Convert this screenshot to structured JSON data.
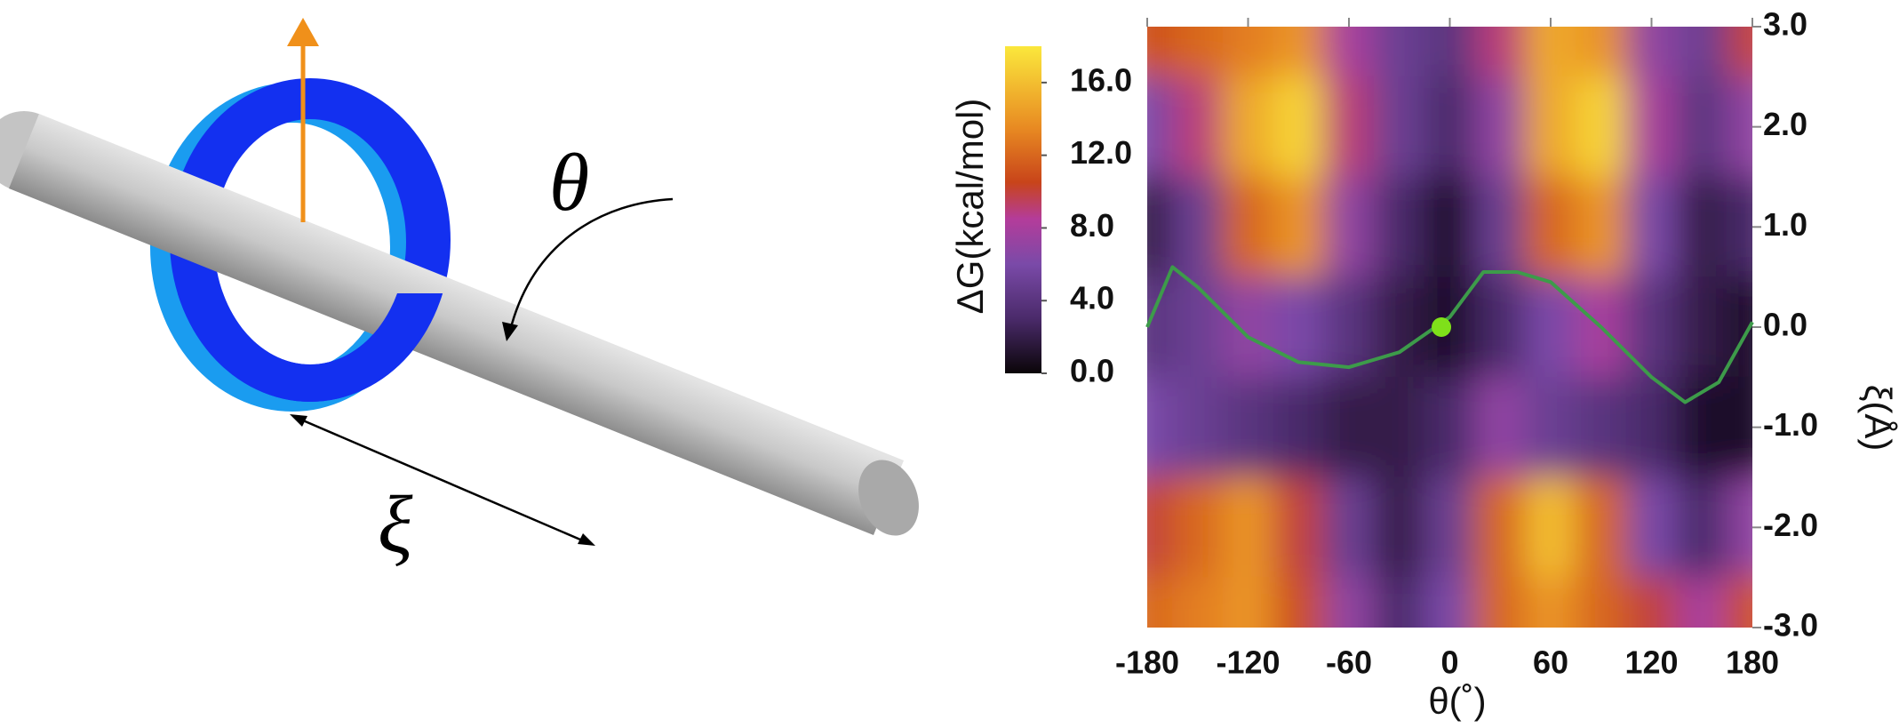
{
  "diagram": {
    "labels": [
      "θ",
      "ξ"
    ]
  },
  "chart_data": {
    "type": "heatmap",
    "xlabel": "θ(˚)",
    "ylabel": "ξ(Å)",
    "colorbar_label": "ΔG(kcal/mol)",
    "xlim": [
      -180,
      180
    ],
    "xticks": [
      -180,
      -120,
      -60,
      0,
      60,
      120,
      180
    ],
    "ylim": [
      -3,
      3
    ],
    "yticks": [
      {
        "value": 3,
        "label": "3.0"
      },
      {
        "value": 2,
        "label": "2.0"
      },
      {
        "value": 1,
        "label": "1.0"
      },
      {
        "value": 0,
        "label": "0.0"
      },
      {
        "value": -1,
        "label": "-1.0"
      },
      {
        "value": -2,
        "label": "-2.0"
      },
      {
        "value": -3,
        "label": "-3.0"
      }
    ],
    "y_axis_side": "right",
    "clim": [
      0,
      18
    ],
    "cticks": [
      {
        "value": 0,
        "label": "0.0"
      },
      {
        "value": 4,
        "label": "4.0"
      },
      {
        "value": 8,
        "label": "8.0"
      },
      {
        "value": 12,
        "label": "12.0"
      },
      {
        "value": 16,
        "label": "16.0"
      }
    ],
    "colormap": [
      {
        "value": 0,
        "color": "#0a0508"
      },
      {
        "value": 3,
        "color": "#4a2a6a"
      },
      {
        "value": 6,
        "color": "#7a4aa8"
      },
      {
        "value": 8.5,
        "color": "#b43c9a"
      },
      {
        "value": 10.5,
        "color": "#c8441a"
      },
      {
        "value": 13.5,
        "color": "#e88a22"
      },
      {
        "value": 18,
        "color": "#fbe83c"
      }
    ],
    "x_grid": [
      -180,
      -150,
      -120,
      -90,
      -60,
      -30,
      0,
      30,
      60,
      90,
      120,
      150,
      180
    ],
    "y_grid": [
      3,
      2,
      1,
      0,
      -1,
      -2,
      -3
    ],
    "z": [
      [
        11,
        12,
        13,
        14,
        8,
        5,
        4,
        9,
        15,
        14,
        7,
        5,
        10
      ],
      [
        6,
        9,
        15,
        17,
        9,
        5,
        3,
        7,
        15,
        17,
        8,
        4,
        7
      ],
      [
        2,
        5,
        12,
        14,
        7,
        3,
        1,
        5,
        12,
        14,
        6,
        2,
        3
      ],
      [
        4,
        5,
        7,
        6,
        4,
        2,
        1,
        3,
        6,
        8,
        4,
        2,
        1
      ],
      [
        6,
        5,
        4,
        3,
        2,
        2,
        3,
        7,
        5,
        4,
        3,
        1,
        1
      ],
      [
        10,
        12,
        14,
        10,
        5,
        2,
        5,
        12,
        16,
        12,
        6,
        3,
        7
      ],
      [
        12,
        13,
        14,
        11,
        7,
        3,
        6,
        12,
        14,
        12,
        10,
        8,
        11
      ]
    ],
    "series": [
      {
        "color": "#3d9b4a",
        "x": [
          -180,
          -165,
          -150,
          -120,
          -90,
          -60,
          -30,
          0,
          20,
          40,
          60,
          90,
          120,
          140,
          160,
          180
        ],
        "values": [
          0.0,
          0.6,
          0.4,
          -0.1,
          -0.35,
          -0.4,
          -0.25,
          0.1,
          0.55,
          0.55,
          0.45,
          0.0,
          -0.5,
          -0.75,
          -0.55,
          0.05
        ]
      }
    ],
    "marker": {
      "x": -5,
      "y": 0.0,
      "color": "#7fe01a"
    }
  }
}
